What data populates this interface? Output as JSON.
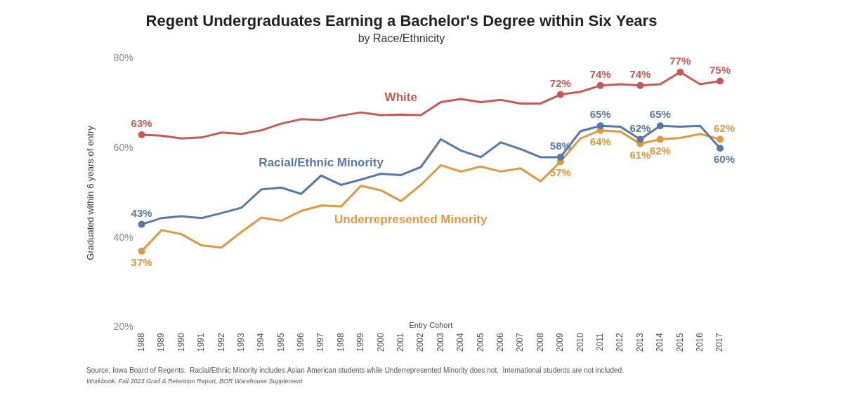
{
  "chart_data": {
    "type": "line",
    "title": "Regent Undergraduates Earning a Bachelor's Degree within Six Years",
    "subtitle": "by Race/Ethnicity",
    "x_label": "Entry Cohort",
    "y_label": "Graduated within 6 years of entry",
    "categories": [
      "1988",
      "1989",
      "1990",
      "1991",
      "1992",
      "1993",
      "1994",
      "1995",
      "1996",
      "1997",
      "1998",
      "1999",
      "2000",
      "2001",
      "2002",
      "2003",
      "2004",
      "2005",
      "2006",
      "2007",
      "2008",
      "2009",
      "2010",
      "2011",
      "2012",
      "2013",
      "2014",
      "2015",
      "2016",
      "2017"
    ],
    "series": [
      {
        "name": "White",
        "color": "#c55a57",
        "marker": "circle",
        "values": [
          63,
          62.8,
          62.2,
          62.4,
          63.5,
          63.2,
          64,
          65.5,
          66.5,
          66.3,
          67.3,
          68,
          67.4,
          67.5,
          67.4,
          70.3,
          71,
          70.3,
          70.8,
          70,
          70,
          72,
          72.6,
          74,
          74.3,
          74,
          74.3,
          77,
          74.3,
          75
        ],
        "value_labels": [
          "63%",
          null,
          null,
          null,
          null,
          null,
          null,
          null,
          null,
          null,
          null,
          null,
          null,
          null,
          null,
          null,
          null,
          null,
          null,
          null,
          null,
          "72%",
          null,
          "74%",
          null,
          "74%",
          null,
          "77%",
          null,
          "75%"
        ]
      },
      {
        "name": "Racial/Ethnic Minority",
        "color": "#5878a8",
        "marker": "circle",
        "values": [
          43,
          44.4,
          44.8,
          44.4,
          45.5,
          46.7,
          50.8,
          51.2,
          49.8,
          53.9,
          51.8,
          53,
          54.3,
          54,
          55.8,
          62,
          59.5,
          58,
          61.3,
          59.8,
          58,
          58,
          63.8,
          65,
          64.8,
          62,
          65,
          64.8,
          65,
          60
        ],
        "value_labels": [
          "43%",
          null,
          null,
          null,
          null,
          null,
          null,
          null,
          null,
          null,
          null,
          null,
          null,
          null,
          null,
          null,
          null,
          null,
          null,
          null,
          null,
          "58%",
          null,
          "65%",
          null,
          "62%",
          "65%",
          null,
          null,
          "60%"
        ]
      },
      {
        "name": "Underrepresented Minority",
        "color": "#df9840",
        "marker": "circle",
        "values": [
          37,
          41.7,
          40.8,
          38.3,
          37.8,
          41.3,
          44.5,
          43.8,
          46,
          47.2,
          47,
          51.6,
          50.6,
          48.2,
          51.8,
          56.2,
          54.8,
          55.9,
          54.8,
          55.5,
          52.6,
          57,
          62.2,
          64,
          63.7,
          61,
          62,
          62.3,
          63.2,
          62
        ],
        "value_labels": [
          "37%",
          null,
          null,
          null,
          null,
          null,
          null,
          null,
          null,
          null,
          null,
          null,
          null,
          null,
          null,
          null,
          null,
          null,
          null,
          null,
          null,
          "57%",
          null,
          "64%",
          null,
          "61%",
          "62%",
          null,
          null,
          "62%"
        ]
      }
    ],
    "ylim": [
      20,
      80
    ],
    "yticks": [
      {
        "value": 20,
        "label": "20%"
      },
      {
        "value": 40,
        "label": "40%"
      },
      {
        "value": 60,
        "label": "60%"
      },
      {
        "value": 80,
        "label": "80%"
      }
    ],
    "grid": false,
    "data_labels": true,
    "notes": [
      "Source: Iowa Board of Regents.  Racial/Ethnic Minority includes Asian American students while Underrepresented Minority does not.  International students are not included.",
      "Workbook: Fall 2023 Grad & Retention Report, BOR Warehouse Supplement"
    ]
  }
}
